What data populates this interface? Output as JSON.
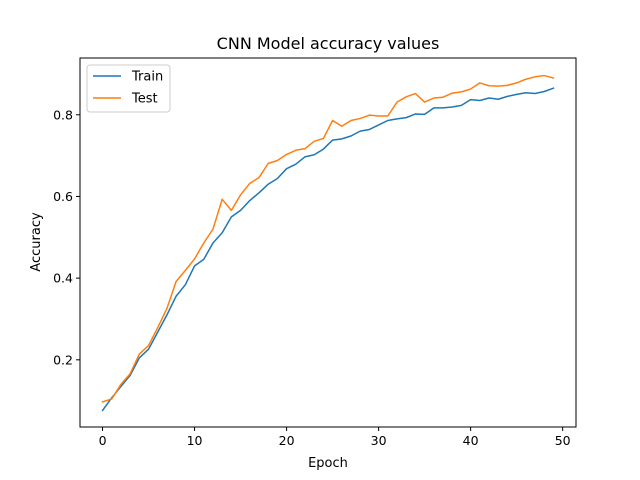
{
  "chart_data": {
    "type": "line",
    "title": "CNN Model accuracy values",
    "xlabel": "Epoch",
    "ylabel": "Accuracy",
    "xlim": [
      -2.45,
      51.45
    ],
    "ylim": [
      0.0355,
      0.939
    ],
    "xticks": [
      0,
      10,
      20,
      30,
      40,
      50
    ],
    "yticks": [
      0.2,
      0.4,
      0.6,
      0.8
    ],
    "ytick_labels": [
      "0.2",
      "0.4",
      "0.6",
      "0.8"
    ],
    "grid": false,
    "legend_position": "upper-left",
    "x": [
      0,
      1,
      2,
      3,
      4,
      5,
      6,
      7,
      8,
      9,
      10,
      11,
      12,
      13,
      14,
      15,
      16,
      17,
      18,
      19,
      20,
      21,
      22,
      23,
      24,
      25,
      26,
      27,
      28,
      29,
      30,
      31,
      32,
      33,
      34,
      35,
      36,
      37,
      38,
      39,
      40,
      41,
      42,
      43,
      44,
      45,
      46,
      47,
      48,
      49
    ],
    "series": [
      {
        "name": "Train",
        "color": "#1f77b4",
        "values": [
          0.076,
          0.107,
          0.135,
          0.162,
          0.205,
          0.226,
          0.268,
          0.31,
          0.356,
          0.384,
          0.43,
          0.446,
          0.486,
          0.511,
          0.55,
          0.566,
          0.59,
          0.609,
          0.63,
          0.644,
          0.668,
          0.679,
          0.697,
          0.702,
          0.716,
          0.738,
          0.741,
          0.748,
          0.76,
          0.764,
          0.775,
          0.786,
          0.79,
          0.793,
          0.802,
          0.801,
          0.817,
          0.817,
          0.819,
          0.823,
          0.837,
          0.835,
          0.841,
          0.838,
          0.845,
          0.85,
          0.854,
          0.852,
          0.857,
          0.865
        ]
      },
      {
        "name": "Test",
        "color": "#ff7f0e",
        "values": [
          0.097,
          0.104,
          0.14,
          0.166,
          0.214,
          0.235,
          0.279,
          0.326,
          0.392,
          0.419,
          0.447,
          0.486,
          0.52,
          0.593,
          0.566,
          0.604,
          0.632,
          0.646,
          0.681,
          0.688,
          0.703,
          0.713,
          0.717,
          0.735,
          0.742,
          0.786,
          0.772,
          0.786,
          0.791,
          0.799,
          0.797,
          0.797,
          0.831,
          0.844,
          0.852,
          0.831,
          0.841,
          0.843,
          0.853,
          0.856,
          0.863,
          0.878,
          0.871,
          0.87,
          0.872,
          0.878,
          0.887,
          0.893,
          0.896,
          0.89
        ]
      }
    ]
  }
}
